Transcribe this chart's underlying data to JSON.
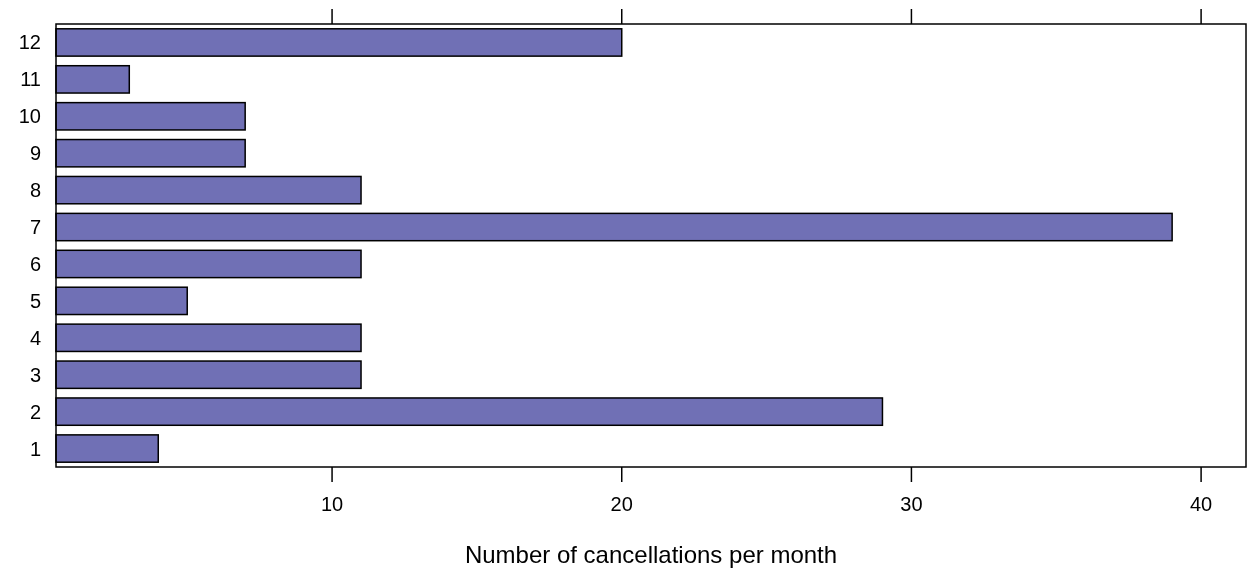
{
  "chart_data": {
    "type": "bar",
    "orientation": "horizontal",
    "xlabel": "Number of cancellations per month",
    "categories": [
      "12",
      "11",
      "10",
      "9",
      "8",
      "7",
      "6",
      "5",
      "4",
      "3",
      "2",
      "1"
    ],
    "values": [
      20,
      3,
      7,
      7,
      11,
      39,
      11,
      5,
      11,
      11,
      29,
      4
    ],
    "color": "#7070b5",
    "xlim": [
      0.47,
      41.55
    ],
    "xticks": [
      10,
      20,
      30,
      40
    ],
    "grid": false
  }
}
